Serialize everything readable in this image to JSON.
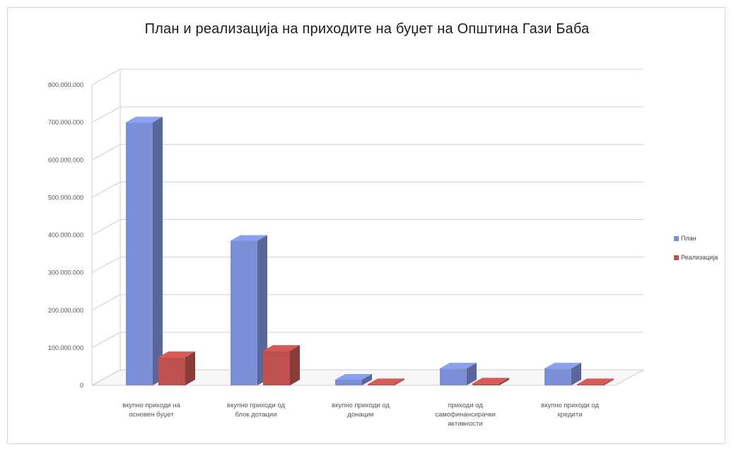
{
  "chart_data": {
    "type": "bar",
    "title": "План и реализација на приходите на буџет на Општина Гази Баба",
    "categories": [
      [
        "вкупно приходи на",
        "основен буџет"
      ],
      [
        "вкупно приходи од",
        "блок дотации"
      ],
      [
        "вкупно приходи од",
        "донации"
      ],
      [
        "приходи од",
        "самофинансирачки",
        "активности"
      ],
      [
        "вкупно приходи од",
        "кредити"
      ]
    ],
    "series": [
      {
        "name": "План",
        "color": "#7b8fd6",
        "values": [
          700000000,
          385000000,
          15000000,
          45000000,
          45000000
        ]
      },
      {
        "name": "Реализација",
        "color": "#c0504d",
        "values": [
          75000000,
          92000000,
          3000000,
          5000000,
          3000000
        ]
      }
    ],
    "y_ticks": [
      "0",
      "100.000.000",
      "200.000.000",
      "300.000.000",
      "400.000.000",
      "500.000.000",
      "600.000.000",
      "700.000.000",
      "800.000.000"
    ],
    "ylim": [
      0,
      800000000
    ],
    "grid": true,
    "legend_position": "right"
  }
}
